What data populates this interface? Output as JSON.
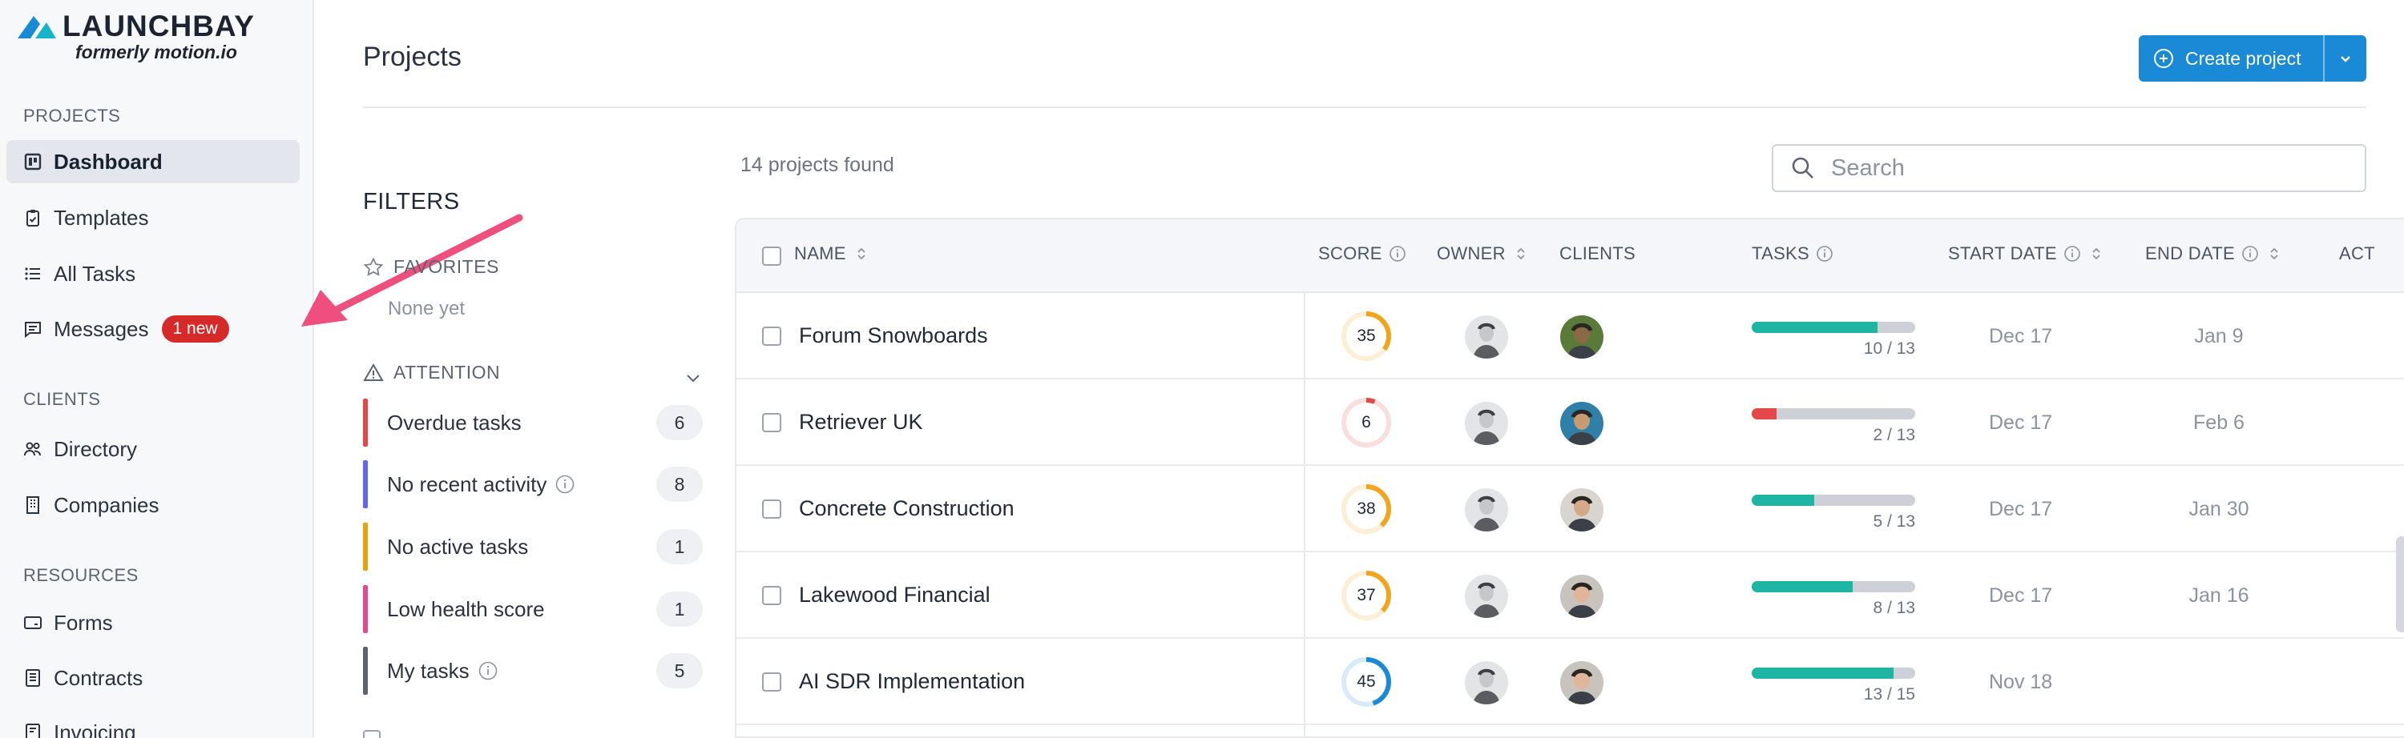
{
  "brand": {
    "name": "LAUNCHBAY",
    "tagline": "formerly motion.io",
    "accent": "#1b8ad6"
  },
  "sidebar": {
    "sections": {
      "projects": "PROJECTS",
      "clients": "CLIENTS",
      "resources": "RESOURCES"
    },
    "items": [
      {
        "label": "Dashboard",
        "icon": "dashboard-icon",
        "active": true
      },
      {
        "label": "Templates",
        "icon": "clipboard-icon"
      },
      {
        "label": "All Tasks",
        "icon": "list-icon"
      },
      {
        "label": "Messages",
        "icon": "message-icon",
        "badge": "1 new"
      },
      {
        "label": "Directory",
        "icon": "people-icon"
      },
      {
        "label": "Companies",
        "icon": "building-icon"
      },
      {
        "label": "Forms",
        "icon": "form-icon"
      },
      {
        "label": "Contracts",
        "icon": "document-icon"
      },
      {
        "label": "Invoicing",
        "icon": "invoice-icon"
      }
    ]
  },
  "header": {
    "title": "Projects",
    "create_label": "Create project"
  },
  "filters": {
    "title": "FILTERS",
    "favorites_label": "FAVORITES",
    "favorites_empty": "None yet",
    "attention_label": "ATTENTION",
    "attention": [
      {
        "label": "Overdue tasks",
        "count": "6",
        "color": "#e54848",
        "info": false
      },
      {
        "label": "No recent activity",
        "count": "8",
        "color": "#6366f1",
        "info": true
      },
      {
        "label": "No active tasks",
        "count": "1",
        "color": "#e5a50a",
        "info": false
      },
      {
        "label": "Low health score",
        "count": "1",
        "color": "#e24a8d",
        "info": false
      },
      {
        "label": "My tasks",
        "count": "5",
        "color": "#5b6472",
        "info": true
      }
    ]
  },
  "list": {
    "found_text": "14 projects found",
    "search_placeholder": "Search",
    "columns": {
      "name": "NAME",
      "score": "SCORE",
      "owner": "OWNER",
      "clients": "CLIENTS",
      "tasks": "TASKS",
      "start_date": "START DATE",
      "end_date": "END DATE",
      "actions": "ACT"
    },
    "rows": [
      {
        "name": "Forum Snowboards",
        "score": 35,
        "score_color": "#f0a51c",
        "tasks_done": 10,
        "tasks_total": 13,
        "tasks_text": "10 / 13",
        "overdue": 0,
        "start": "Dec 17",
        "end": "Jan 9",
        "client_skin": "#8a6a44",
        "client_bg": "#5a7a3a"
      },
      {
        "name": "Retriever UK",
        "score": 6,
        "score_color": "#e54848",
        "tasks_done": 2,
        "tasks_total": 13,
        "tasks_text": "2 / 13",
        "overdue": 2,
        "start": "Dec 17",
        "end": "Feb 6",
        "client_skin": "#c89a70",
        "client_bg": "#2f7fa8"
      },
      {
        "name": "Concrete Construction",
        "score": 38,
        "score_color": "#f0a51c",
        "tasks_done": 5,
        "tasks_total": 13,
        "tasks_text": "5 / 13",
        "overdue": 0,
        "start": "Dec 17",
        "end": "Jan 30",
        "client_skin": "#d6a88a",
        "client_bg": "#d8d4cf"
      },
      {
        "name": "Lakewood Financial",
        "score": 37,
        "score_color": "#f0a51c",
        "tasks_done": 8,
        "tasks_total": 13,
        "tasks_text": "8 / 13",
        "overdue": 0,
        "start": "Dec 17",
        "end": "Jan 16",
        "client_skin": "#e0b59a",
        "client_bg": "#c9c3be"
      },
      {
        "name": "AI SDR Implementation",
        "score": 45,
        "score_color": "#1b8ad6",
        "tasks_done": 13,
        "tasks_total": 15,
        "tasks_text": "13 / 15",
        "overdue": 0,
        "start": "Nov 18",
        "end": "",
        "client_skin": "#e0b59a",
        "client_bg": "#c9c3be"
      }
    ]
  }
}
